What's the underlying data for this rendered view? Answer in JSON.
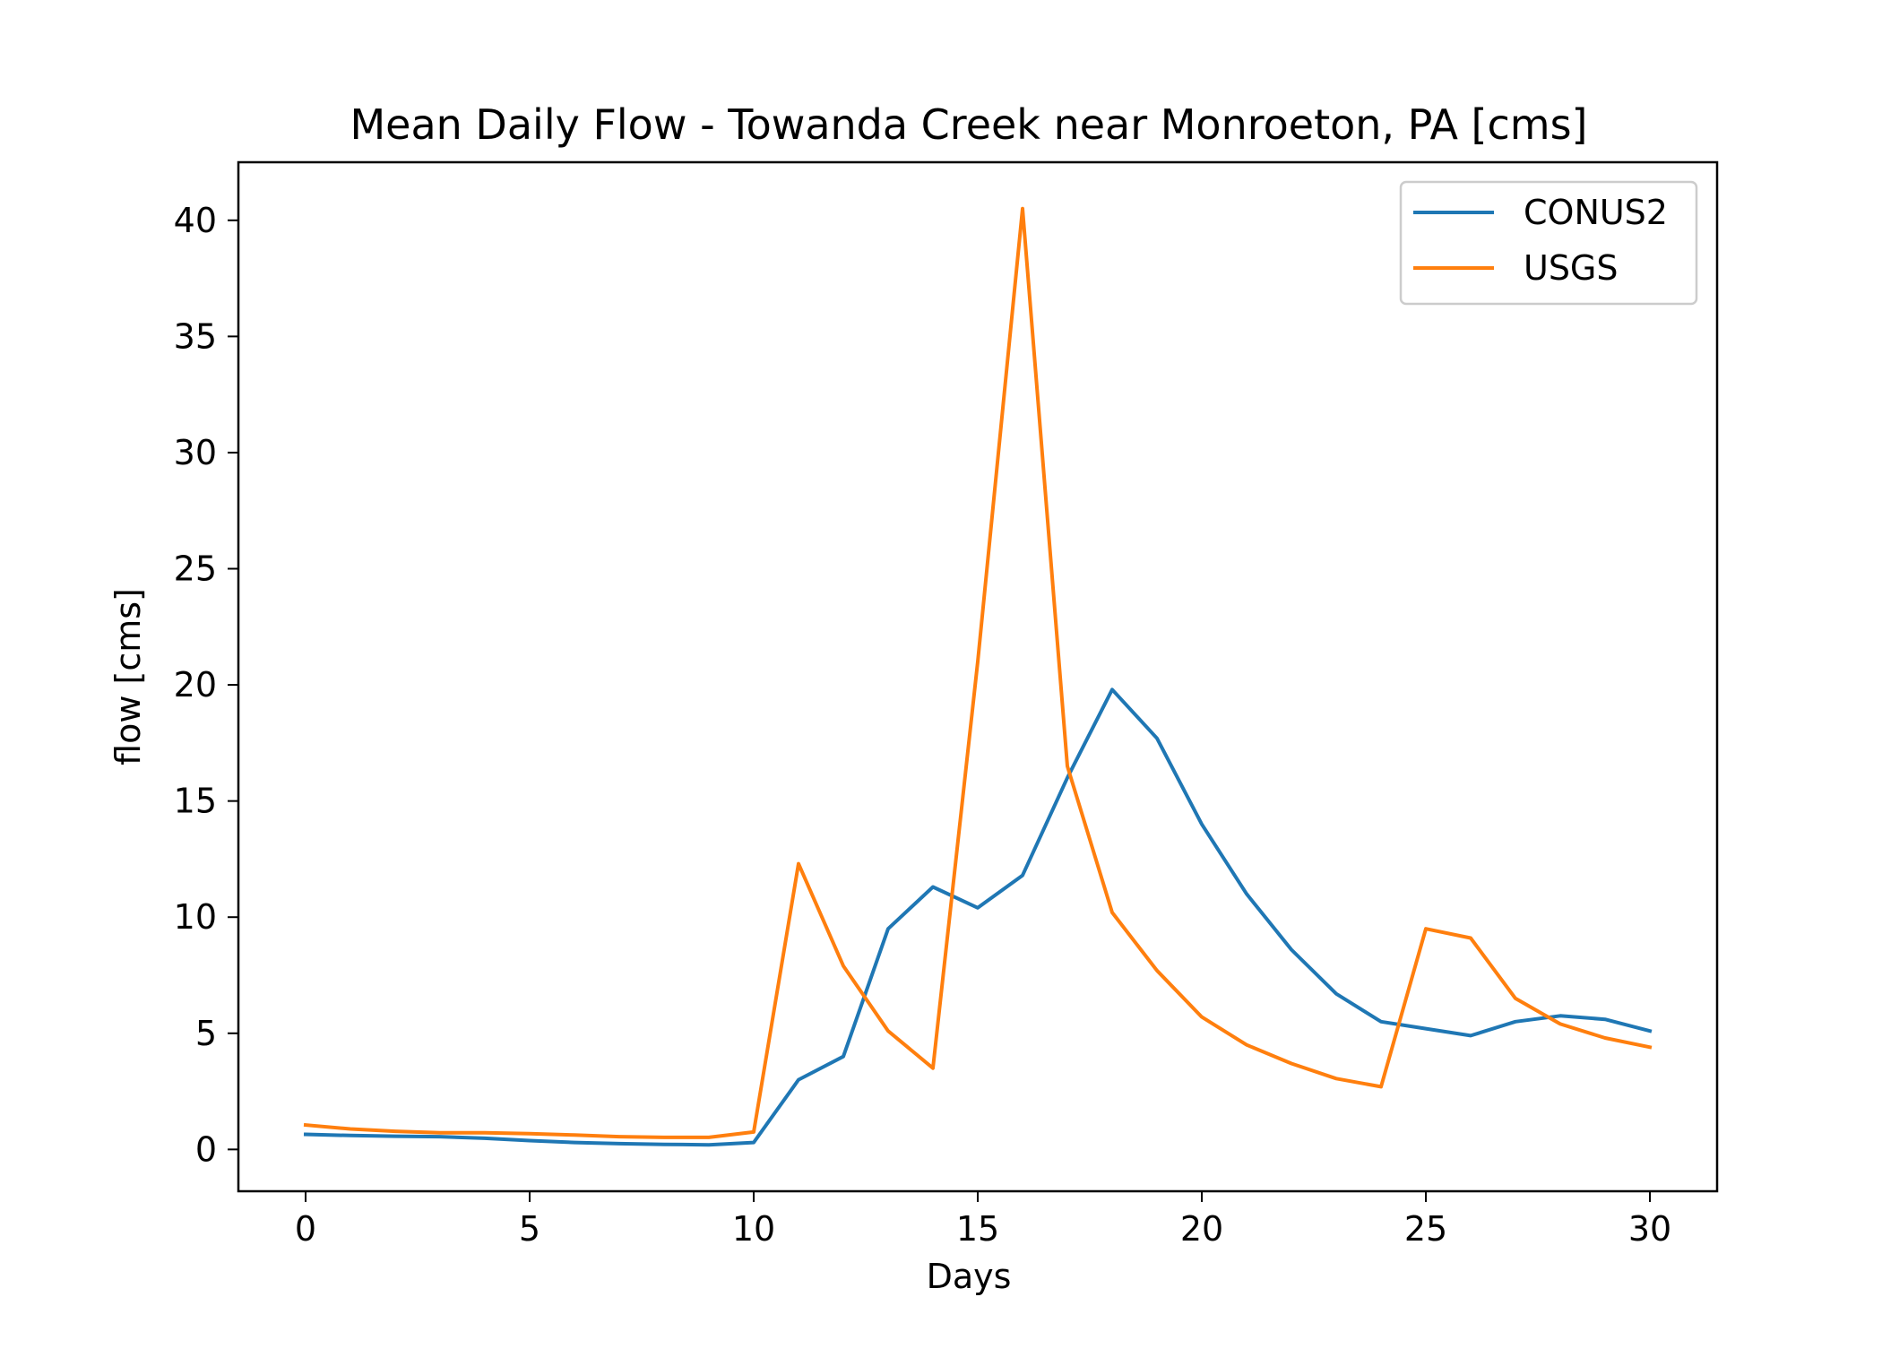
{
  "chart_data": {
    "type": "line",
    "title": "Mean Daily Flow - Towanda Creek near Monroeton, PA [cms]",
    "xlabel": "Days",
    "ylabel": "flow [cms]",
    "xlim": [
      -1.5,
      31.5
    ],
    "ylim": [
      -1.8,
      42.5
    ],
    "xticks": [
      0,
      5,
      10,
      15,
      20,
      25,
      30
    ],
    "yticks": [
      0,
      5,
      10,
      15,
      20,
      25,
      30,
      35,
      40
    ],
    "grid": false,
    "legend_position": "top-right",
    "x": [
      0,
      1,
      2,
      3,
      4,
      5,
      6,
      7,
      8,
      9,
      10,
      11,
      12,
      13,
      14,
      15,
      16,
      17,
      18,
      19,
      20,
      21,
      22,
      23,
      24,
      25,
      26,
      27,
      28,
      29,
      30
    ],
    "series": [
      {
        "name": "CONUS2",
        "color": "#1f77b4",
        "values": [
          0.65,
          0.6,
          0.57,
          0.55,
          0.48,
          0.38,
          0.3,
          0.25,
          0.22,
          0.2,
          0.3,
          3.0,
          4.0,
          9.5,
          11.3,
          10.4,
          11.8,
          16.0,
          19.8,
          17.7,
          14.0,
          11.0,
          8.6,
          6.7,
          5.5,
          5.2,
          4.9,
          5.5,
          5.75,
          5.6,
          5.1
        ]
      },
      {
        "name": "USGS",
        "color": "#ff7f0e",
        "values": [
          1.05,
          0.88,
          0.78,
          0.72,
          0.72,
          0.68,
          0.62,
          0.55,
          0.52,
          0.52,
          0.75,
          12.3,
          7.9,
          5.1,
          3.5,
          21.0,
          40.5,
          16.5,
          10.2,
          7.7,
          5.7,
          4.5,
          3.7,
          3.05,
          2.7,
          9.5,
          9.1,
          6.5,
          5.4,
          4.8,
          4.4
        ]
      }
    ]
  }
}
